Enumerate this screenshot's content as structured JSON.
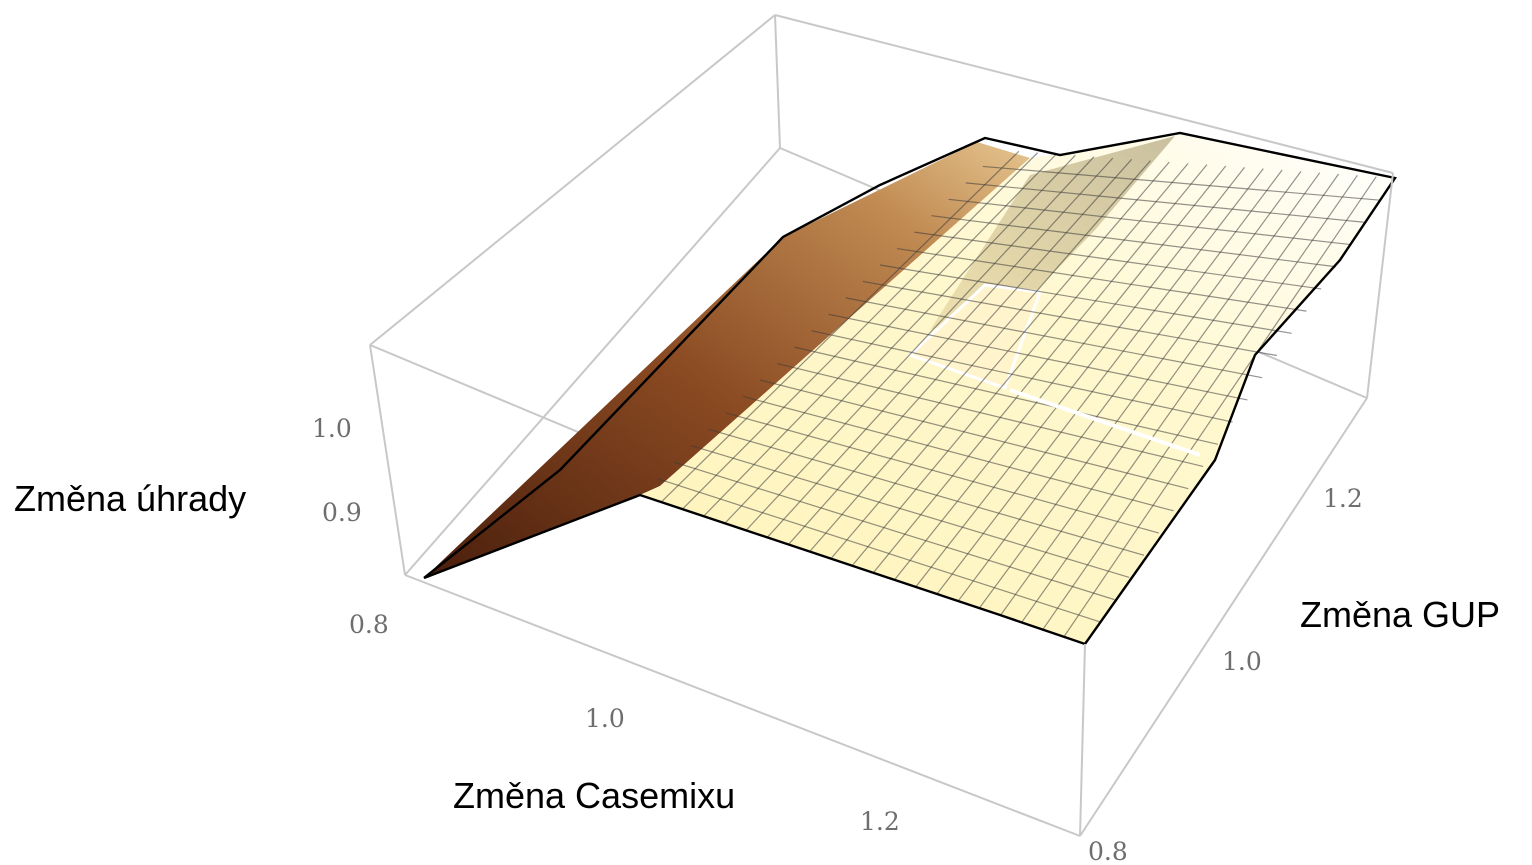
{
  "chart_data": {
    "type": "surface3d",
    "title": "",
    "x_axis": {
      "label": "Změna Casemixu",
      "range": [
        0.8,
        1.3
      ],
      "ticks": [
        {
          "value": 1.0,
          "label": "1.0"
        },
        {
          "value": 1.2,
          "label": "1.2"
        }
      ]
    },
    "y_axis": {
      "label": "Změna GUP",
      "range": [
        0.8,
        1.3
      ],
      "ticks": [
        {
          "value": 0.8,
          "label": "0.8"
        },
        {
          "value": 1.0,
          "label": "1.0"
        },
        {
          "value": 1.2,
          "label": "1.2"
        }
      ]
    },
    "z_axis": {
      "label": "Změna úhrady",
      "range": [
        0.8,
        1.05
      ],
      "ticks": [
        {
          "value": 0.8,
          "label": "0.8"
        },
        {
          "value": 0.9,
          "label": "0.9"
        },
        {
          "value": 1.0,
          "label": "1.0"
        }
      ]
    },
    "surface": {
      "grid_x": [
        0.8,
        0.85,
        0.9,
        0.95,
        1.0,
        1.05,
        1.1,
        1.15,
        1.2,
        1.25,
        1.3
      ],
      "grid_y": [
        0.8,
        0.85,
        0.9,
        0.95,
        1.0,
        1.05,
        1.1,
        1.15,
        1.2,
        1.25,
        1.3
      ],
      "z_description": "z rises from 0.8 at casemix 0.8 to about 1.0 near casemix 0.95, then stays on a plateau near 0.98–1.0; higher GUP raises the plateau slightly",
      "z": [
        [
          0.8,
          0.87,
          0.93,
          0.98,
          0.99,
          0.99,
          0.99,
          0.99,
          0.99,
          0.99,
          0.99
        ],
        [
          0.8,
          0.87,
          0.93,
          0.98,
          0.99,
          0.99,
          0.99,
          0.99,
          0.99,
          0.99,
          0.99
        ],
        [
          0.8,
          0.87,
          0.93,
          0.98,
          0.99,
          0.99,
          0.99,
          0.99,
          0.99,
          0.99,
          0.99
        ],
        [
          0.8,
          0.87,
          0.93,
          0.98,
          0.99,
          0.99,
          0.99,
          0.99,
          0.99,
          0.99,
          0.99
        ],
        [
          0.8,
          0.87,
          0.93,
          0.98,
          0.99,
          0.99,
          0.99,
          0.99,
          0.99,
          0.99,
          0.99
        ],
        [
          0.81,
          0.88,
          0.94,
          0.99,
          1.0,
          1.0,
          1.0,
          1.0,
          1.0,
          1.0,
          1.0
        ],
        [
          0.81,
          0.88,
          0.94,
          0.99,
          1.0,
          1.0,
          1.0,
          1.0,
          1.0,
          1.0,
          1.0
        ],
        [
          0.82,
          0.89,
          0.95,
          1.0,
          1.01,
          1.01,
          1.01,
          1.01,
          1.01,
          1.01,
          1.01
        ],
        [
          0.82,
          0.89,
          0.95,
          1.0,
          1.01,
          1.01,
          1.01,
          1.01,
          1.01,
          1.01,
          1.01
        ],
        [
          0.83,
          0.9,
          0.96,
          1.01,
          1.02,
          1.02,
          1.02,
          1.02,
          1.02,
          1.02,
          1.02
        ],
        [
          0.83,
          0.9,
          0.96,
          1.01,
          1.02,
          1.02,
          1.02,
          1.02,
          1.02,
          1.02,
          1.02
        ]
      ]
    },
    "colors": {
      "low": "#5a2a12",
      "mid": "#b5763a",
      "high": "#fff7c8",
      "box": "#c8c8c8",
      "mesh": "#222222",
      "tick_text": "#6e6e6e"
    },
    "grid": false,
    "legend": "none"
  }
}
